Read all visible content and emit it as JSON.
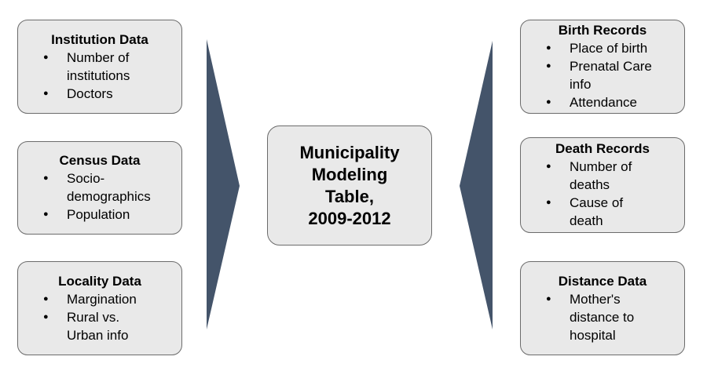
{
  "left_boxes": [
    {
      "title": "Institution Data",
      "items": [
        [
          "Number of",
          "institutions"
        ],
        [
          "Doctors"
        ]
      ]
    },
    {
      "title": "Census Data",
      "items": [
        [
          "Socio-",
          "demographics"
        ],
        [
          "Population"
        ]
      ]
    },
    {
      "title": "Locality Data",
      "items": [
        [
          "Margination"
        ],
        [
          "Rural vs.",
          "Urban info"
        ]
      ]
    }
  ],
  "center": {
    "lines": [
      "Municipality",
      "Modeling",
      "Table,",
      "2009-2012"
    ]
  },
  "right_boxes": [
    {
      "title": "Birth Records",
      "items": [
        [
          "Place of birth"
        ],
        [
          "Prenatal Care",
          "info"
        ],
        [
          "Attendance"
        ]
      ]
    },
    {
      "title": "Death Records",
      "items": [
        [
          "Number of",
          "deaths"
        ],
        [
          "Cause of",
          "death"
        ]
      ]
    },
    {
      "title": "Distance Data",
      "items": [
        [
          "Mother's",
          "distance to",
          "hospital"
        ]
      ]
    }
  ]
}
